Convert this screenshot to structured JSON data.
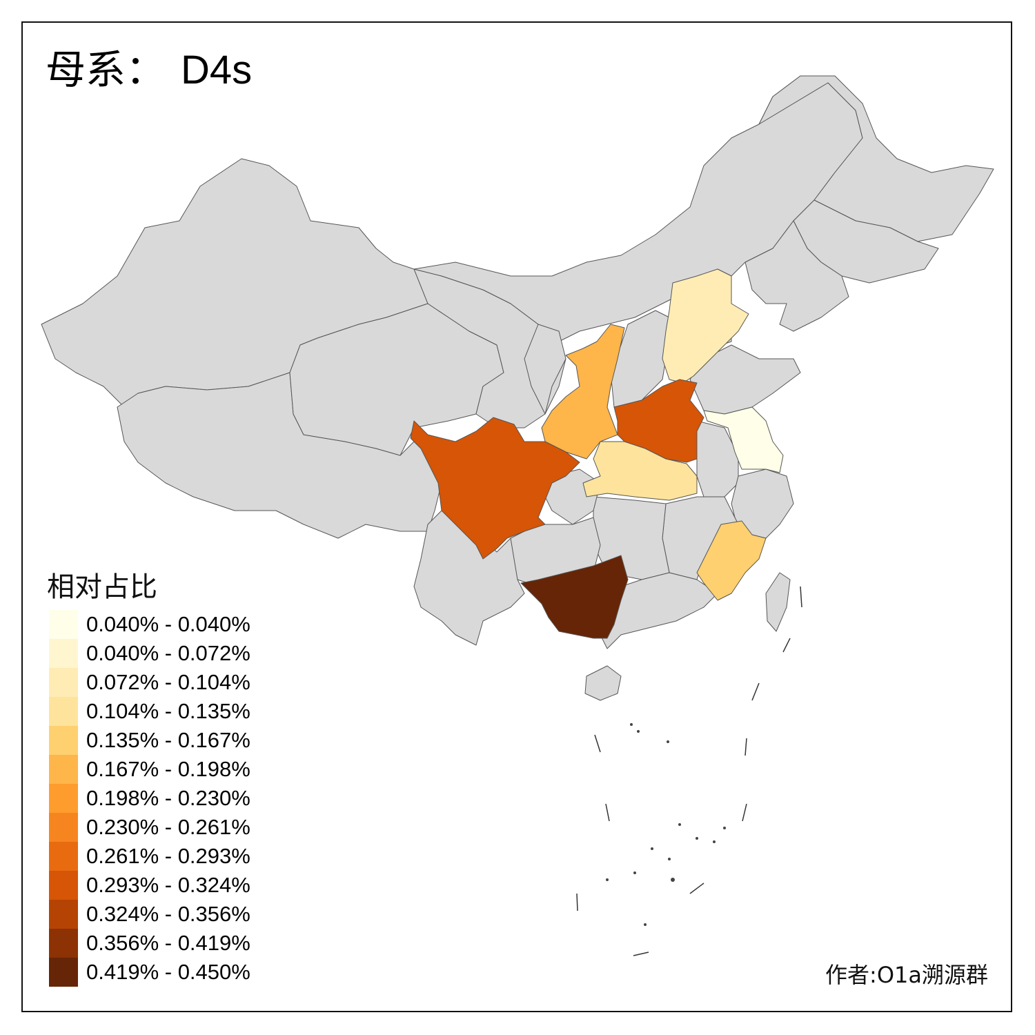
{
  "title": {
    "prefix": "母系：",
    "main": "D4s"
  },
  "legend": {
    "title": "相对占比",
    "items": [
      {
        "label": "0.040% - 0.040%",
        "color": "#fffee8"
      },
      {
        "label": "0.040% - 0.072%",
        "color": "#fff5cf"
      },
      {
        "label": "0.072% - 0.104%",
        "color": "#feecb4"
      },
      {
        "label": "0.104% - 0.135%",
        "color": "#fee39c"
      },
      {
        "label": "0.135% - 0.167%",
        "color": "#fed06f"
      },
      {
        "label": "0.167% - 0.198%",
        "color": "#feb54a"
      },
      {
        "label": "0.198% - 0.230%",
        "color": "#fe9c2d"
      },
      {
        "label": "0.230% - 0.261%",
        "color": "#f68520"
      },
      {
        "label": "0.261% - 0.293%",
        "color": "#e86b10"
      },
      {
        "label": "0.293% - 0.324%",
        "color": "#d65506"
      },
      {
        "label": "0.324% - 0.356%",
        "color": "#b54303"
      },
      {
        "label": "0.356% - 0.419%",
        "color": "#8c3204"
      },
      {
        "label": "0.419% - 0.450%",
        "color": "#662506"
      }
    ]
  },
  "credit": "作者:O1a溯源群",
  "colors": {
    "no_data": "#d9d9d9",
    "border": "#555555"
  }
}
